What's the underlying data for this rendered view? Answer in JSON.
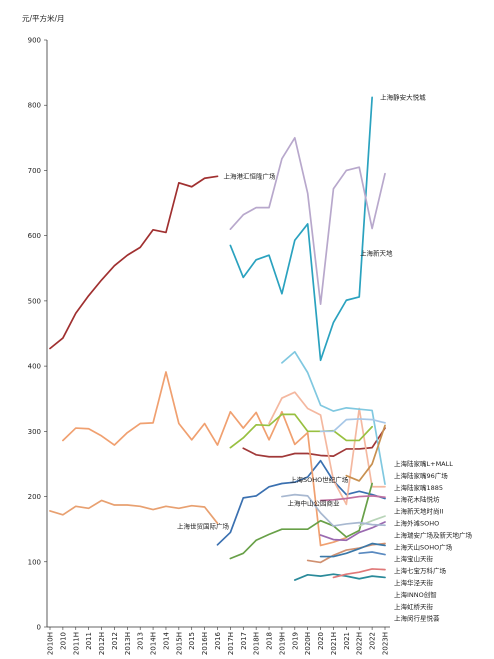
{
  "chart_data": {
    "type": "line",
    "ylabel": "元/平方米/月",
    "ylim": [
      0,
      900
    ],
    "y_ticks": [
      0,
      100,
      200,
      300,
      400,
      500,
      600,
      700,
      800,
      900
    ],
    "x": [
      "2010H",
      "2010",
      "2011H",
      "2011",
      "2012H",
      "2012",
      "2013H",
      "2013",
      "2014H",
      "2014",
      "2015H",
      "2015",
      "2016H",
      "2016",
      "2017H",
      "2017",
      "2018H",
      "2018",
      "2019H",
      "2019",
      "2020H",
      "2020",
      "2021H",
      "2021",
      "2022H",
      "2022",
      "2023H"
    ],
    "grid": false,
    "series": [
      {
        "name": "上海港汇恒隆广场",
        "color": "#a03030",
        "values": [
          427,
          443,
          481,
          508,
          532,
          554,
          570,
          582,
          609,
          605,
          681,
          675,
          688,
          691,
          null,
          null,
          null,
          null,
          null,
          null,
          null,
          null,
          null,
          null,
          null,
          null,
          null
        ]
      },
      {
        "name": "上海静安大悦城",
        "color": "#2aa2bf",
        "values": [
          null,
          null,
          null,
          null,
          null,
          null,
          null,
          null,
          null,
          null,
          null,
          null,
          null,
          null,
          585,
          536,
          563,
          570,
          511,
          593,
          618,
          409,
          467,
          501,
          506,
          812,
          null
        ]
      },
      {
        "name": "上海新天地",
        "color": "#b8a8cc",
        "values": [
          null,
          null,
          null,
          null,
          null,
          null,
          null,
          null,
          null,
          null,
          null,
          null,
          null,
          null,
          610,
          632,
          643,
          643,
          718,
          750,
          665,
          495,
          672,
          700,
          705,
          611,
          695
        ]
      },
      {
        "name": "上海SOHO世纪广场",
        "color": "#a03838",
        "values": [
          null,
          null,
          null,
          null,
          null,
          null,
          null,
          null,
          null,
          null,
          null,
          null,
          null,
          null,
          null,
          274,
          264,
          261,
          261,
          266,
          266,
          263,
          262,
          273,
          273,
          275,
          305
        ]
      },
      {
        "name": "上海世贸国际广场",
        "color": "#3a70b0",
        "values": [
          null,
          null,
          null,
          null,
          null,
          null,
          null,
          null,
          null,
          null,
          null,
          null,
          null,
          126,
          145,
          198,
          201,
          215,
          220,
          222,
          230,
          255,
          224,
          203,
          208,
          203,
          197
        ]
      },
      {
        "name": "上海中山公园商业",
        "color": "#e8a070",
        "values": [
          178,
          172,
          185,
          182,
          194,
          187,
          187,
          185,
          180,
          185,
          182,
          186,
          184,
          159,
          null,
          null,
          null,
          null,
          null,
          null,
          null,
          null,
          null,
          null,
          null,
          null,
          null
        ]
      },
      {
        "name": "上海陕西南路",
        "color": "#f0a070",
        "values": [
          null,
          286,
          305,
          304,
          293,
          279,
          298,
          312,
          313,
          391,
          312,
          287,
          312,
          279,
          330,
          305,
          329,
          287,
          330,
          280,
          298,
          125,
          130,
          137,
          null,
          null,
          null
        ]
      },
      {
        "name": "上海静安嘉里中心",
        "color": "#f4b8a0",
        "values": [
          null,
          null,
          null,
          null,
          null,
          null,
          null,
          null,
          null,
          null,
          null,
          null,
          null,
          null,
          null,
          null,
          null,
          312,
          351,
          360,
          335,
          325,
          225,
          188,
          335,
          215,
          215
        ]
      },
      {
        "name": "上海陆家嘴L+MALL",
        "color": "#98c040",
        "values": [
          null,
          null,
          null,
          null,
          null,
          null,
          null,
          null,
          null,
          null,
          null,
          null,
          null,
          null,
          275,
          290,
          310,
          309,
          326,
          326,
          300,
          300,
          301,
          286,
          286,
          307,
          null
        ]
      },
      {
        "name": "上海陆家嘴96广场",
        "color": "#68a048",
        "values": [
          null,
          null,
          null,
          null,
          null,
          null,
          null,
          null,
          null,
          null,
          null,
          null,
          null,
          null,
          105,
          113,
          133,
          142,
          150,
          150,
          150,
          163,
          155,
          138,
          148,
          220,
          null
        ]
      },
      {
        "name": "上海陆家嘴1885",
        "color": "#80c8e0",
        "values": [
          null,
          null,
          null,
          null,
          null,
          null,
          null,
          null,
          null,
          null,
          null,
          null,
          null,
          null,
          null,
          null,
          null,
          null,
          405,
          422,
          390,
          340,
          331,
          336,
          334,
          332,
          219
        ]
      },
      {
        "name": "上海花木陆悦坊",
        "color": "#a7c7e7",
        "values": [
          null,
          null,
          null,
          null,
          null,
          null,
          null,
          null,
          null,
          null,
          null,
          null,
          null,
          null,
          null,
          null,
          null,
          null,
          null,
          null,
          null,
          300,
          300,
          318,
          319,
          318,
          313
        ]
      },
      {
        "name": "上海新天地时尚II",
        "color": "#9a6ab0",
        "values": [
          null,
          null,
          null,
          null,
          null,
          null,
          null,
          null,
          null,
          null,
          null,
          null,
          null,
          null,
          null,
          null,
          null,
          null,
          null,
          null,
          null,
          141,
          134,
          133,
          145,
          152,
          161
        ]
      },
      {
        "name": "上海外滩SOHO",
        "color": "#c070a0",
        "values": [
          null,
          null,
          null,
          null,
          null,
          null,
          null,
          null,
          null,
          null,
          null,
          null,
          null,
          null,
          null,
          null,
          null,
          null,
          null,
          null,
          null,
          194,
          195,
          197,
          200,
          201,
          199
        ]
      },
      {
        "name": "上海瑞安广场及新天地广场",
        "color": "#b8d4b8",
        "values": [
          null,
          null,
          null,
          null,
          null,
          null,
          null,
          null,
          null,
          null,
          null,
          null,
          null,
          null,
          null,
          null,
          null,
          null,
          null,
          null,
          null,
          null,
          null,
          null,
          155,
          163,
          170
        ]
      },
      {
        "name": "上海天山SOHO广场",
        "color": "#d09070",
        "values": [
          null,
          null,
          null,
          null,
          null,
          null,
          null,
          null,
          null,
          null,
          null,
          null,
          null,
          null,
          null,
          null,
          null,
          null,
          null,
          null,
          102,
          99,
          110,
          118,
          121,
          126,
          128
        ]
      },
      {
        "name": "上海宝山天街",
        "color": "#c89050",
        "values": [
          null,
          null,
          null,
          null,
          null,
          null,
          null,
          null,
          null,
          null,
          null,
          null,
          null,
          null,
          null,
          null,
          null,
          null,
          null,
          null,
          null,
          null,
          null,
          232,
          224,
          250,
          309
        ]
      },
      {
        "name": "上海七宝万科广场",
        "color": "#2a8a9a",
        "values": [
          null,
          null,
          null,
          null,
          null,
          null,
          null,
          null,
          null,
          null,
          null,
          null,
          null,
          null,
          null,
          null,
          null,
          null,
          null,
          72,
          80,
          78,
          81,
          78,
          74,
          78,
          76
        ]
      },
      {
        "name": "上海华泾天街",
        "color": "#5a8ac0",
        "values": [
          null,
          null,
          null,
          null,
          null,
          null,
          null,
          null,
          null,
          null,
          null,
          null,
          null,
          null,
          null,
          null,
          null,
          null,
          null,
          null,
          null,
          null,
          null,
          null,
          113,
          115,
          111
        ]
      },
      {
        "name": "上海INNO创智",
        "color": "#e07878",
        "values": [
          null,
          null,
          null,
          null,
          null,
          null,
          null,
          null,
          null,
          null,
          null,
          null,
          null,
          null,
          null,
          null,
          null,
          null,
          null,
          null,
          null,
          null,
          76,
          81,
          84,
          89,
          88
        ]
      },
      {
        "name": "上海虹桥天街",
        "color": "#3a78a8",
        "values": [
          null,
          null,
          null,
          null,
          null,
          null,
          null,
          null,
          null,
          null,
          null,
          null,
          null,
          null,
          null,
          null,
          null,
          null,
          null,
          null,
          null,
          108,
          108,
          113,
          120,
          128,
          125
        ]
      },
      {
        "name": "上海闵行星悦荟",
        "color": "#a8b8d0",
        "values": [
          null,
          null,
          null,
          null,
          null,
          null,
          null,
          null,
          null,
          null,
          null,
          null,
          null,
          null,
          null,
          null,
          null,
          null,
          200,
          203,
          201,
          175,
          155,
          158,
          160,
          157,
          156
        ]
      }
    ],
    "inline_labels": [
      "上海港汇恒隆广场",
      "上海静安大悦城",
      "上海新天地",
      "上海SOHO世纪广场",
      "上海世贸国际广场",
      "上海中山公园商业"
    ],
    "legend_entries": [
      "上海陆家嘴L+MALL",
      "上海陆家嘴96广场",
      "上海陆家嘴1885",
      "上海花木陆悦坊",
      "上海新天地时尚II",
      "上海外滩SOHO",
      "上海瑞安广场及新天地广场",
      "上海天山SOHO广场",
      "上海宝山天街",
      "上海七宝万科广场",
      "上海华泾天街",
      "上海INNO创智",
      "上海虹桥天街",
      "上海闵行星悦荟"
    ]
  }
}
